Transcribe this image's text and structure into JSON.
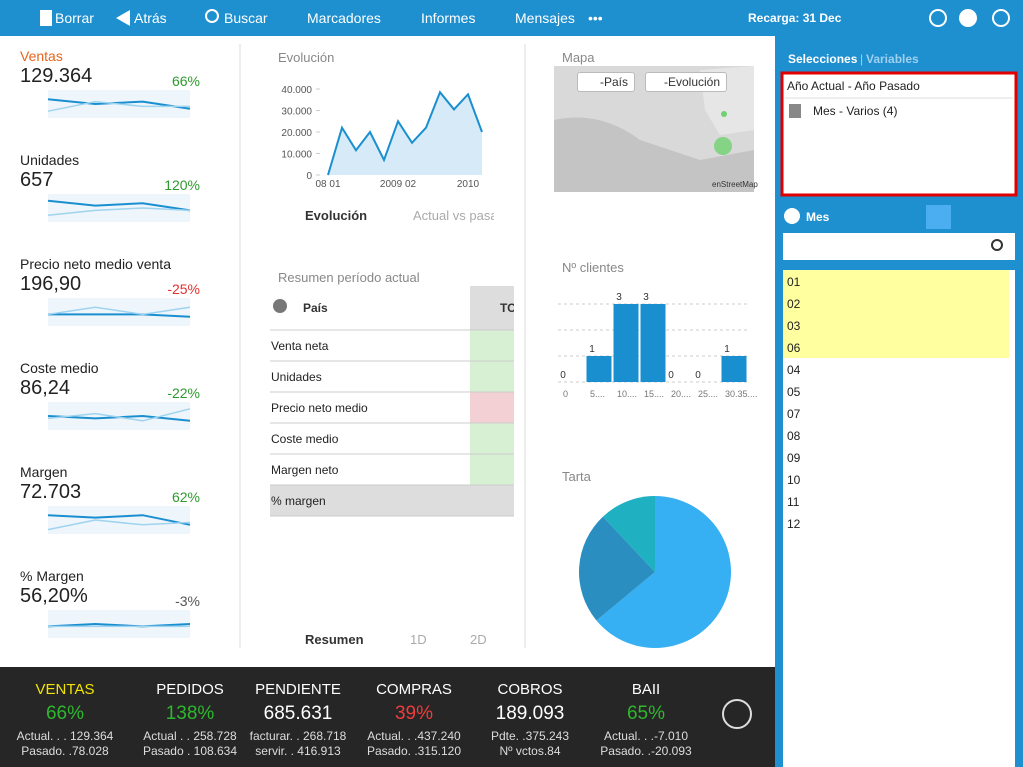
{
  "toolbar": {
    "items": [
      "Borrar",
      "Atrás",
      "Buscar",
      "Marcadores",
      "Informes",
      "Mensajes",
      "•••"
    ],
    "reload": "Recarga: 31 Dec"
  },
  "kpis": [
    {
      "name": "Ventas",
      "value": "129.364",
      "pct": "66%",
      "name_color": "#e8631c",
      "pct_color": "#2e9a2e",
      "spark": [
        [
          7,
          5,
          6,
          3
        ],
        [
          2,
          6,
          4,
          4
        ]
      ]
    },
    {
      "name": "Unidades",
      "value": "657",
      "pct": "120%",
      "name_color": "#222222",
      "pct_color": "#2e9a2e",
      "spark": [
        [
          8,
          6,
          7,
          4
        ],
        [
          2,
          4,
          5,
          4
        ]
      ]
    },
    {
      "name": "Precio neto medio venta",
      "value": "196,90",
      "pct": "-25%",
      "name_color": "#222222",
      "pct_color": "#e03030",
      "spark": [
        [
          4,
          4,
          4,
          3
        ],
        [
          4,
          7,
          4,
          7
        ]
      ]
    },
    {
      "name": "Coste medio",
      "value": "86,24",
      "pct": "-22%",
      "name_color": "#222222",
      "pct_color": "#2e9a2e",
      "spark": [
        [
          5,
          4,
          5,
          3
        ],
        [
          4,
          6,
          3,
          8
        ]
      ]
    },
    {
      "name": "Margen",
      "value": "72.703",
      "pct": "62%",
      "name_color": "#222222",
      "pct_color": "#2e9a2e",
      "spark": [
        [
          7,
          6,
          7,
          3
        ],
        [
          1,
          5,
          3,
          4
        ]
      ]
    },
    {
      "name": "% Margen",
      "value": "56,20%",
      "pct": "-3%",
      "name_color": "#222222",
      "pct_color": "#555555",
      "spark": [
        [
          4,
          5,
          4,
          5
        ],
        [
          4,
          4,
          4,
          4
        ]
      ]
    }
  ],
  "chart_data": [
    {
      "type": "line",
      "title": "Evolución",
      "categories": [
        "08 01",
        null,
        null,
        null,
        null,
        "2009 02",
        null,
        null,
        null,
        null,
        "2010",
        null
      ],
      "series": [
        {
          "name": "Evolución",
          "color": "#1a8fd0",
          "values": [
            0,
            22000,
            11500,
            20000,
            7000,
            25000,
            15000,
            22000,
            38500,
            30500,
            37500,
            20000
          ]
        }
      ],
      "legend_items": [
        "Evolución",
        "Actual vs pasa"
      ],
      "ylim": [
        0,
        40000
      ],
      "yticks": [
        0,
        {
          "value": 10000,
          "label": "10.000"
        },
        {
          "value": 20000,
          "label": "20.000"
        },
        {
          "value": 30000,
          "label": "30.000"
        },
        {
          "value": 40000,
          "label": "40.000"
        }
      ]
    },
    {
      "type": "bar",
      "title": "Nº clientes",
      "categories": [
        "0",
        "5....",
        "10....",
        "15....",
        "20....",
        "25....",
        "30.35...."
      ],
      "values": [
        0,
        1,
        3,
        3,
        0,
        0,
        1
      ],
      "color": "#1a8fd0",
      "ylim": [
        0,
        3
      ]
    },
    {
      "type": "pie",
      "title": "Tarta",
      "values": [
        64,
        24,
        12
      ],
      "colors": [
        "#36b0f2",
        "#2a8fc0",
        "#1fb0c2"
      ]
    }
  ],
  "mapa": {
    "title": "Mapa",
    "buttons": [
      "-País",
      "-Evolución"
    ],
    "credit": "enStreetMap"
  },
  "resumen": {
    "title": "Resumen período actual",
    "header": [
      "País",
      "TO"
    ],
    "rows": [
      {
        "label": "Venta neta",
        "color": "#d7efd2"
      },
      {
        "label": "Unidades",
        "color": "#d7efd2"
      },
      {
        "label": "Precio neto medio",
        "color": "#f2d0d4"
      },
      {
        "label": "Coste medio",
        "color": "#d7efd2"
      },
      {
        "label": "Margen neto",
        "color": "#d7efd2"
      },
      {
        "label": "% margen",
        "color": "#dddddd"
      }
    ],
    "tabs": [
      "Resumen",
      "1D",
      "2D"
    ]
  },
  "panel": {
    "tab_active": "Selecciones",
    "separator": "|",
    "tab_other": "Variables",
    "selections": [
      "Año Actual - Año Pasado",
      "Mes - Varios (4)"
    ],
    "field": "Mes",
    "list": [
      {
        "label": "01",
        "selected": true
      },
      {
        "label": "02",
        "selected": true
      },
      {
        "label": "03",
        "selected": true
      },
      {
        "label": "06",
        "selected": true
      },
      {
        "label": "04",
        "selected": false
      },
      {
        "label": "05",
        "selected": false
      },
      {
        "label": "07",
        "selected": false
      },
      {
        "label": "08",
        "selected": false
      },
      {
        "label": "09",
        "selected": false
      },
      {
        "label": "10",
        "selected": false
      },
      {
        "label": "11",
        "selected": false
      },
      {
        "label": "12",
        "selected": false
      }
    ]
  },
  "footer": [
    {
      "title": "VENTAS",
      "big": "66%",
      "big_color": "#2eb82e",
      "title_color": "#f2e400",
      "lines": [
        "Actual. . . 129.364",
        "Pasado. .78.028"
      ]
    },
    {
      "title": "PEDIDOS",
      "big": "138%",
      "big_color": "#2eb82e",
      "title_color": "#ffffff",
      "lines": [
        "Actual . . 258.728",
        "Pasado . 108.634"
      ]
    },
    {
      "title": "PENDIENTE",
      "big": "685.631",
      "big_color": "#ffffff",
      "title_color": "#ffffff",
      "lines": [
        "facturar. . 268.718",
        "servir. . 416.913"
      ]
    },
    {
      "title": "COMPRAS",
      "big": "39%",
      "big_color": "#f03c3c",
      "title_color": "#ffffff",
      "lines": [
        "Actual. . .437.240",
        "Pasado. .315.120"
      ]
    },
    {
      "title": "COBROS",
      "big": "189.093",
      "big_color": "#ffffff",
      "title_color": "#ffffff",
      "lines": [
        "Pdte. .375.243",
        "Nº vctos.84"
      ]
    },
    {
      "title": "BAII",
      "big": "65%",
      "big_color": "#2eb82e",
      "title_color": "#ffffff",
      "lines": [
        "Actual. . .-7.010",
        "Pasado. .-20.093"
      ]
    }
  ]
}
